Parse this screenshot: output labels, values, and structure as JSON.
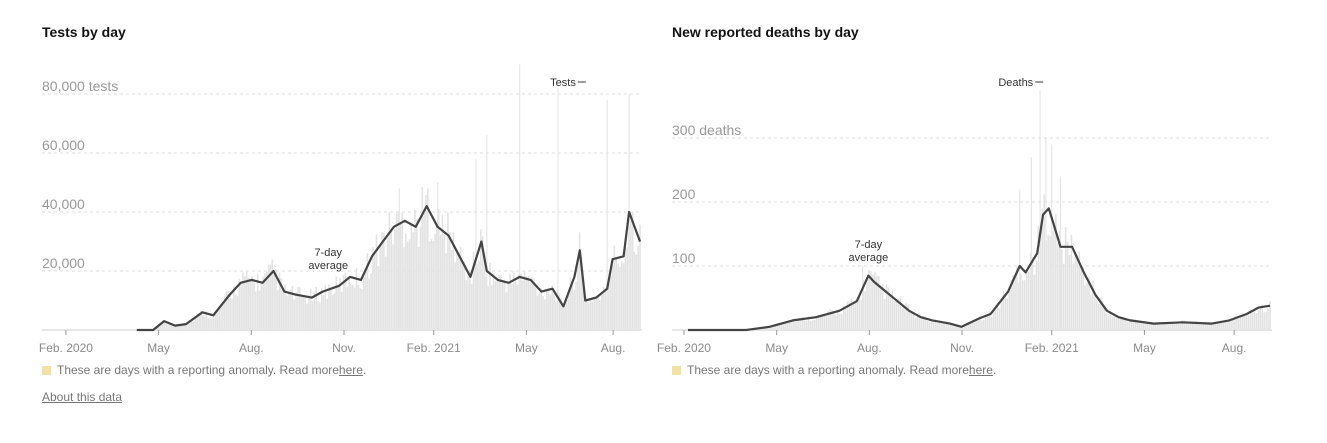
{
  "charts": [
    {
      "id": "tests",
      "title": "Tests by day",
      "series_label": "Tests",
      "avg_label_1": "7-day",
      "avg_label_2": "average",
      "note_text": "These are days with a reporting anomaly. Read more ",
      "note_link": "here",
      "note_end": ".",
      "about": "About this data"
    },
    {
      "id": "deaths",
      "title": "New reported deaths by day",
      "series_label": "Deaths",
      "avg_label_1": "7-day",
      "avg_label_2": "average",
      "note_text": "These are days with a reporting anomaly. Read more ",
      "note_link": "here",
      "note_end": "."
    }
  ],
  "colors": {
    "avg_line": "#444444",
    "bars": "#e3e3e3",
    "anomaly": "#f3e2a6",
    "grid": "#dddddd"
  },
  "chart_data": [
    {
      "type": "area",
      "title": "Tests by day",
      "xlabel": "",
      "ylabel": "tests",
      "xlim": [
        0,
        1.0
      ],
      "ylim": [
        0,
        80000
      ],
      "yticks": [
        {
          "value": 20000,
          "label": "20,000"
        },
        {
          "value": 40000,
          "label": "40,000"
        },
        {
          "value": 60000,
          "label": "60,000"
        },
        {
          "value": 80000,
          "label": "80,000 tests"
        }
      ],
      "xticks": [
        {
          "pos": 0.04,
          "label": "Feb. 2020"
        },
        {
          "pos": 0.195,
          "label": "May"
        },
        {
          "pos": 0.35,
          "label": "Aug."
        },
        {
          "pos": 0.505,
          "label": "Nov."
        },
        {
          "pos": 0.655,
          "label": "Feb. 2021"
        },
        {
          "pos": 0.81,
          "label": "May"
        },
        {
          "pos": 0.955,
          "label": "Aug."
        }
      ],
      "series": [
        {
          "name": "7-day average",
          "points": [
            [
              0.08,
              0
            ],
            [
              0.11,
              0
            ],
            [
              0.13,
              3000
            ],
            [
              0.15,
              1500
            ],
            [
              0.17,
              2000
            ],
            [
              0.2,
              6000
            ],
            [
              0.22,
              5000
            ],
            [
              0.25,
              12000
            ],
            [
              0.27,
              16000
            ],
            [
              0.29,
              17000
            ],
            [
              0.31,
              16000
            ],
            [
              0.33,
              20000
            ],
            [
              0.35,
              13000
            ],
            [
              0.37,
              12000
            ],
            [
              0.4,
              11000
            ],
            [
              0.42,
              13000
            ],
            [
              0.45,
              15000
            ],
            [
              0.47,
              18000
            ],
            [
              0.49,
              17000
            ],
            [
              0.51,
              25000
            ],
            [
              0.53,
              30000
            ],
            [
              0.55,
              35000
            ],
            [
              0.57,
              37000
            ],
            [
              0.59,
              35000
            ],
            [
              0.61,
              42000
            ],
            [
              0.63,
              35000
            ],
            [
              0.65,
              32000
            ],
            [
              0.67,
              25000
            ],
            [
              0.69,
              18000
            ],
            [
              0.71,
              30000
            ],
            [
              0.72,
              20000
            ],
            [
              0.74,
              17000
            ],
            [
              0.76,
              16000
            ],
            [
              0.78,
              18000
            ],
            [
              0.8,
              17000
            ],
            [
              0.82,
              13000
            ],
            [
              0.84,
              14000
            ],
            [
              0.86,
              8000
            ],
            [
              0.88,
              18000
            ],
            [
              0.89,
              27000
            ],
            [
              0.9,
              10000
            ],
            [
              0.92,
              11000
            ],
            [
              0.94,
              14000
            ],
            [
              0.95,
              24000
            ],
            [
              0.97,
              25000
            ],
            [
              0.98,
              40000
            ],
            [
              1.0,
              30000
            ]
          ]
        }
      ],
      "spikes": [
        [
          0.78,
          90000
        ],
        [
          0.85,
          82000
        ],
        [
          0.98,
          80000
        ],
        [
          0.94,
          78000
        ],
        [
          0.72,
          66000
        ],
        [
          0.7,
          58000
        ],
        [
          0.63,
          50000
        ],
        [
          0.56,
          48000
        ]
      ],
      "annotations": [
        {
          "text": "7-day average",
          "x": 0.43,
          "y": 19000
        },
        {
          "text": "Tests",
          "x": 0.89,
          "y": 84000
        }
      ]
    },
    {
      "type": "area",
      "title": "New reported deaths by day",
      "xlabel": "",
      "ylabel": "deaths",
      "xlim": [
        0,
        1.0
      ],
      "ylim": [
        0,
        300
      ],
      "yticks": [
        {
          "value": 100,
          "label": "100"
        },
        {
          "value": 200,
          "label": "200"
        },
        {
          "value": 300,
          "label": "300 deaths"
        }
      ],
      "xticks": [
        {
          "pos": 0.02,
          "label": "Feb. 2020"
        },
        {
          "pos": 0.175,
          "label": "May"
        },
        {
          "pos": 0.33,
          "label": "Aug."
        },
        {
          "pos": 0.485,
          "label": "Nov."
        },
        {
          "pos": 0.635,
          "label": "Feb. 2021"
        },
        {
          "pos": 0.79,
          "label": "May"
        },
        {
          "pos": 0.94,
          "label": "Aug."
        }
      ],
      "series": [
        {
          "name": "7-day average",
          "points": [
            [
              0,
              0
            ],
            [
              0.1,
              0
            ],
            [
              0.14,
              5
            ],
            [
              0.18,
              15
            ],
            [
              0.22,
              20
            ],
            [
              0.26,
              30
            ],
            [
              0.29,
              45
            ],
            [
              0.31,
              85
            ],
            [
              0.32,
              75
            ],
            [
              0.34,
              60
            ],
            [
              0.36,
              45
            ],
            [
              0.38,
              30
            ],
            [
              0.4,
              20
            ],
            [
              0.42,
              15
            ],
            [
              0.45,
              10
            ],
            [
              0.47,
              5
            ],
            [
              0.5,
              18
            ],
            [
              0.52,
              25
            ],
            [
              0.55,
              60
            ],
            [
              0.57,
              100
            ],
            [
              0.58,
              90
            ],
            [
              0.6,
              120
            ],
            [
              0.61,
              180
            ],
            [
              0.62,
              190
            ],
            [
              0.63,
              160
            ],
            [
              0.64,
              130
            ],
            [
              0.66,
              130
            ],
            [
              0.68,
              90
            ],
            [
              0.7,
              55
            ],
            [
              0.72,
              30
            ],
            [
              0.74,
              20
            ],
            [
              0.76,
              15
            ],
            [
              0.8,
              10
            ],
            [
              0.85,
              12
            ],
            [
              0.9,
              10
            ],
            [
              0.93,
              15
            ],
            [
              0.96,
              25
            ],
            [
              0.98,
              35
            ],
            [
              1.0,
              38
            ]
          ]
        }
      ],
      "spikes": [
        [
          0.605,
          380
        ],
        [
          0.615,
          300
        ],
        [
          0.625,
          290
        ],
        [
          0.59,
          270
        ],
        [
          0.64,
          240
        ],
        [
          0.3,
          100
        ],
        [
          0.57,
          220
        ]
      ],
      "annotations": [
        {
          "text": "7-day average",
          "x": 0.31,
          "y": 100
        },
        {
          "text": "Deaths",
          "x": 0.6,
          "y": 380
        }
      ]
    }
  ]
}
